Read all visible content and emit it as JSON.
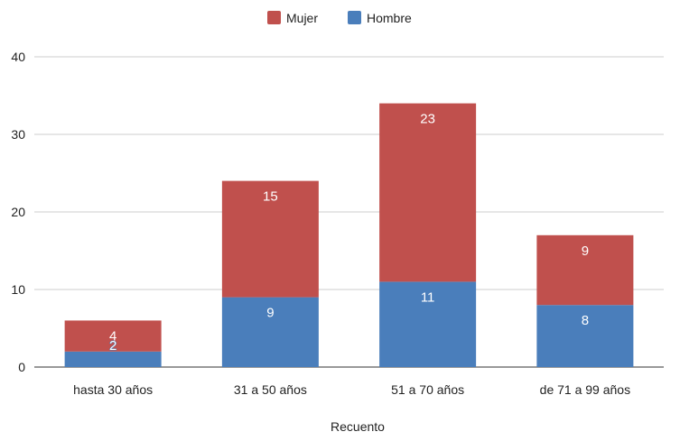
{
  "chart_data": {
    "type": "bar",
    "stacked": true,
    "categories": [
      "hasta 30 años",
      "31 a 50 años",
      "51 a 70 años",
      "de 71 a 99 años"
    ],
    "series": [
      {
        "name": "Hombre",
        "values": [
          2,
          9,
          11,
          8
        ],
        "color": "#4a7ebb"
      },
      {
        "name": "Mujer",
        "values": [
          4,
          15,
          23,
          9
        ],
        "color": "#c0504d"
      }
    ],
    "legend_order": [
      "Mujer",
      "Hombre"
    ],
    "legend_position": "top",
    "xlabel": "Recuento",
    "ylabel": "",
    "ylim": [
      0,
      40
    ],
    "yticks": [
      0,
      10,
      20,
      30,
      40
    ],
    "grid": true,
    "data_labels": true
  }
}
